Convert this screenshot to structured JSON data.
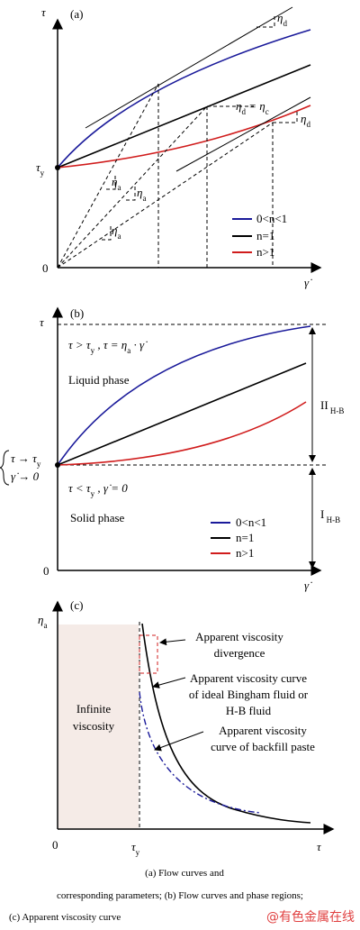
{
  "panel_a": {
    "label": "(a)",
    "y_axis": "τ",
    "x_axis": "γ̇",
    "origin": "0",
    "tau_y": [
      {
        "text": "τ"
      },
      {
        "sub": "y"
      }
    ],
    "eta_d_top": [
      {
        "text": "η"
      },
      {
        "sub": "d"
      }
    ],
    "eta_d_eq": [
      {
        "text": "η"
      },
      {
        "sub": "d"
      },
      {
        "text": " = η"
      },
      {
        "sub": "c"
      }
    ],
    "eta_d_right": [
      {
        "text": "η"
      },
      {
        "sub": "d"
      }
    ],
    "eta_a": [
      [
        {
          "text": "η"
        },
        {
          "sub": "a"
        }
      ],
      [
        {
          "text": "η"
        },
        {
          "sub": "a"
        }
      ],
      [
        {
          "text": "η"
        },
        {
          "sub": "a"
        }
      ]
    ],
    "legend": [
      "0<n<1",
      "n=1",
      "n>1"
    ]
  },
  "panel_b": {
    "label": "(b)",
    "y_axis": "τ",
    "x_axis": "γ̇",
    "origin": "0",
    "liquid_condition": [
      {
        "text": "τ > τ"
      },
      {
        "sub": "y"
      },
      {
        "text": " , τ = η"
      },
      {
        "sub": "a"
      },
      {
        "text": " · γ̇"
      }
    ],
    "liquid_phase": "Liquid phase",
    "region_2": [
      {
        "text": "II"
      },
      {
        "sub": " H-B"
      }
    ],
    "limit_tau": [
      {
        "text": "τ → τ"
      },
      {
        "sub": "y"
      }
    ],
    "limit_rate": "γ̇ → 0",
    "solid_condition": [
      {
        "text": "τ < τ"
      },
      {
        "sub": "y"
      },
      {
        "text": " , γ̇ = 0"
      }
    ],
    "region_1": [
      {
        "text": "I"
      },
      {
        "sub": " H-B"
      }
    ],
    "solid_phase": "Solid phase",
    "legend": [
      "0<n<1",
      "n=1",
      "n>1"
    ]
  },
  "panel_c": {
    "label": "(c)",
    "y_axis": [
      {
        "text": "η"
      },
      {
        "sub": "a"
      }
    ],
    "x_axis": "τ",
    "origin": "0",
    "tau_y": [
      {
        "text": "τ"
      },
      {
        "sub": "y"
      }
    ],
    "divergence": [
      "Apparent viscosity",
      "divergence"
    ],
    "ideal_curve": [
      "Apparent viscosity curve",
      "of ideal Bingham fluid or",
      "H-B fluid"
    ],
    "infinite": [
      "Infinite",
      "viscosity"
    ],
    "paste_curve": [
      "Apparent viscosity",
      "curve of backfill paste"
    ]
  },
  "caption": [
    "(a)   Flow   curves   and",
    "corresponding parameters; (b) Flow curves and phase regions;",
    "(c) Apparent viscosity curve"
  ],
  "watermark": "@有色金属在线"
}
